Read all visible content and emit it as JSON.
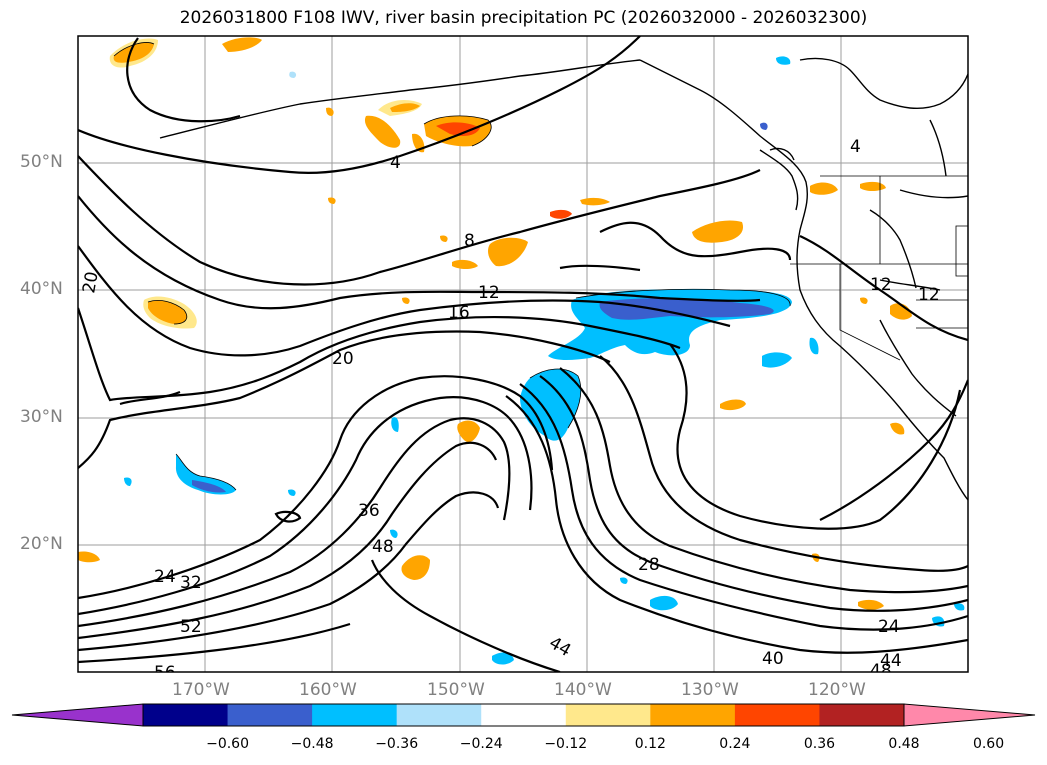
{
  "title": "2026031800 F108 IWV, river basin precipitation PC (2026032000 - 2026032300)",
  "map": {
    "lat_labels": [
      "50°N",
      "40°N",
      "30°N",
      "20°N"
    ],
    "lon_labels": [
      "170°W",
      "160°W",
      "150°W",
      "140°W",
      "130°W",
      "120°W"
    ],
    "gridlines": true
  },
  "contours": {
    "field": "IWV",
    "labels": [
      "4",
      "4",
      "8",
      "12",
      "12",
      "12",
      "16",
      "20",
      "20",
      "24",
      "24",
      "28",
      "32",
      "36",
      "40",
      "44",
      "44",
      "48",
      "48",
      "52",
      "56"
    ]
  },
  "colorbar": {
    "ticks": [
      "−0.60",
      "−0.48",
      "−0.36",
      "−0.24",
      "−0.12",
      "0.12",
      "0.24",
      "0.36",
      "0.48",
      "0.60"
    ],
    "colors": [
      "#9932cc",
      "#00008b",
      "#3a5fcd",
      "#00bfff",
      "#afe1fa",
      "#ffffff",
      "#ffe88c",
      "#ffa500",
      "#ff4500",
      "#b22222",
      "#ff88aa"
    ],
    "extend": "both"
  }
}
